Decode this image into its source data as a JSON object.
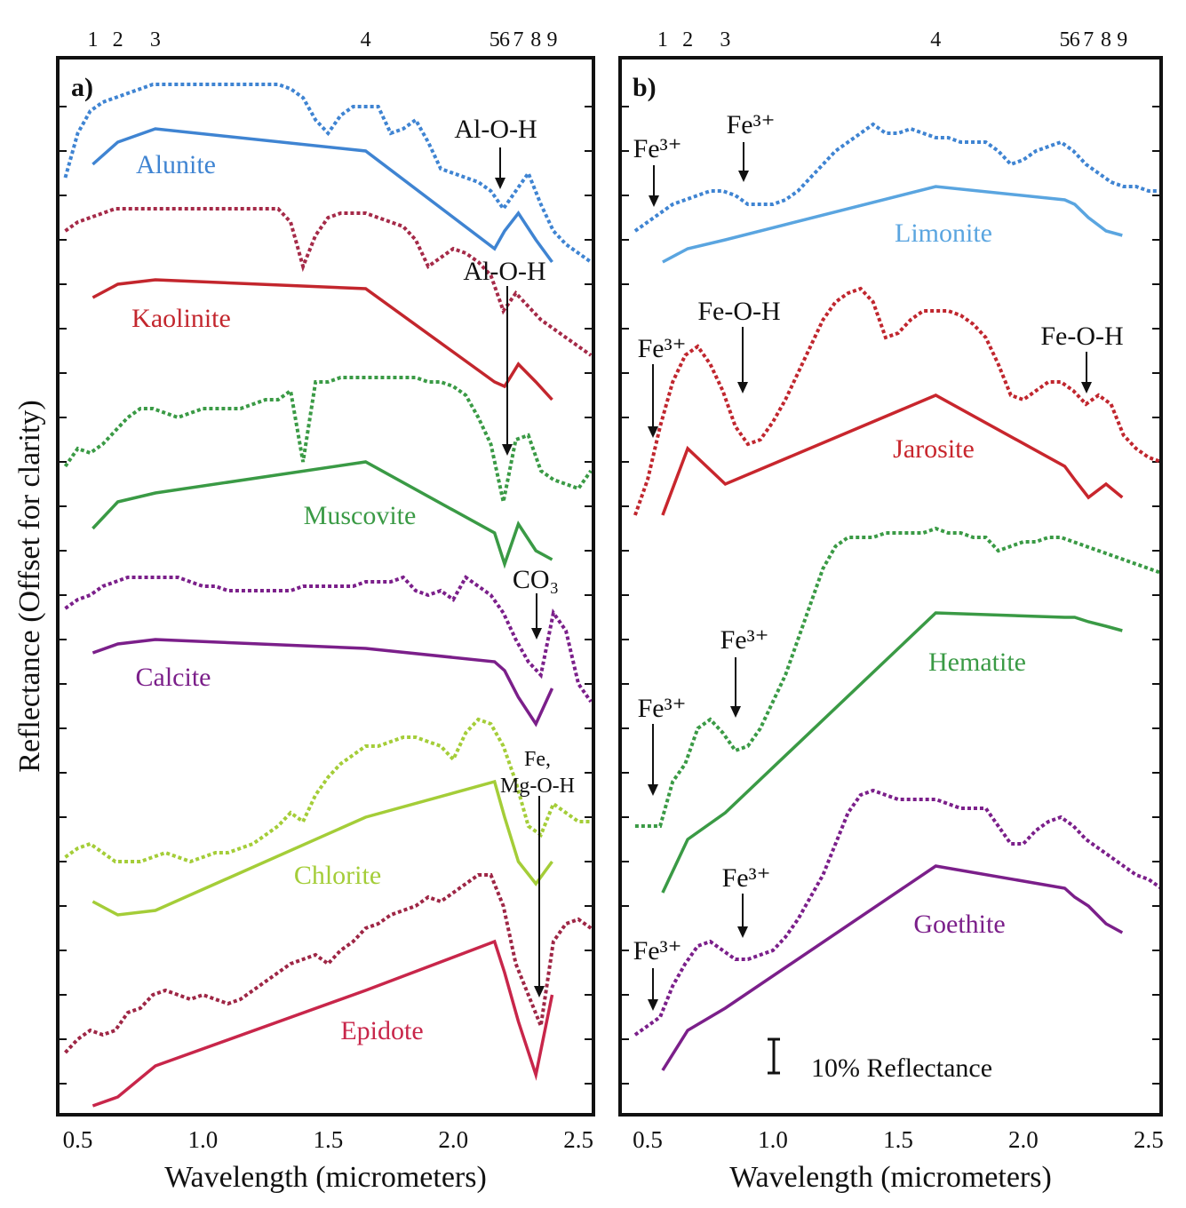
{
  "chart_data": [
    {
      "type": "line",
      "panel_label": "a)",
      "xlabel": "Wavelength (micrometers)",
      "ylabel": "Reflectance (Offset for clarity)",
      "xlim": [
        0.42,
        2.56
      ],
      "xticks": [
        0.5,
        {
          "value": 1,
          "label": "1.0"
        },
        1.5,
        {
          "value": 2,
          "label": "2.0"
        },
        2.5
      ],
      "x2ticks": [
        {
          "value": 0.56,
          "label": "1"
        },
        {
          "value": 0.66,
          "label": "2"
        },
        {
          "value": 0.81,
          "label": "3"
        },
        {
          "value": 1.65,
          "label": "4"
        },
        {
          "value": 2.165,
          "label": "5"
        },
        {
          "value": 2.205,
          "label": "6"
        },
        {
          "value": 2.26,
          "label": "7"
        },
        {
          "value": 2.33,
          "label": "8"
        },
        {
          "value": 2.395,
          "label": "9"
        }
      ],
      "ylim": [
        -7,
        231
      ],
      "yticks": [
        0,
        10,
        20,
        30,
        40,
        50,
        60,
        70,
        80,
        90,
        100,
        110,
        120,
        130,
        140,
        150,
        160,
        170,
        180,
        190,
        200,
        210,
        220
      ],
      "x": [
        0.45,
        0.5,
        0.55,
        0.6,
        0.65,
        0.7,
        0.75,
        0.8,
        0.85,
        0.9,
        0.95,
        1.0,
        1.05,
        1.1,
        1.15,
        1.2,
        1.25,
        1.3,
        1.35,
        1.4,
        1.45,
        1.5,
        1.55,
        1.6,
        1.65,
        1.7,
        1.75,
        1.8,
        1.85,
        1.9,
        1.95,
        2.0,
        2.05,
        2.1,
        2.15,
        2.2,
        2.25,
        2.3,
        2.35,
        2.4,
        2.45,
        2.5,
        2.55
      ],
      "series": [
        {
          "name": "Alunite",
          "color": "#3f84d2",
          "dotted_color": "#3f84d2",
          "values": [
            204,
            214,
            219,
            221,
            222,
            223,
            224,
            225,
            225,
            225,
            225,
            225,
            225,
            225,
            225,
            225,
            225,
            225,
            224,
            222,
            217,
            214,
            218,
            220,
            220,
            220,
            214,
            215,
            217,
            212,
            206,
            205,
            204,
            203,
            201,
            197,
            201,
            205,
            198,
            192,
            189,
            187,
            185
          ],
          "band_values": [
            207,
            212,
            215,
            210,
            188,
            192,
            196,
            190,
            185
          ]
        },
        {
          "name": "Kaolinite",
          "color": "#c3262d",
          "dotted_color": "#a52a48",
          "values": [
            192,
            194,
            195,
            196,
            197,
            197,
            197,
            197,
            197,
            197,
            197,
            197,
            197,
            197,
            197,
            197,
            197,
            197,
            194,
            184,
            191,
            195,
            196,
            196,
            196,
            195,
            194,
            193,
            190,
            184,
            186,
            188,
            187,
            185,
            182,
            174,
            178,
            175,
            172,
            170,
            168,
            166,
            164
          ],
          "band_values": [
            177,
            180,
            181,
            179,
            158,
            157,
            162,
            158,
            154
          ]
        },
        {
          "name": "Muscovite",
          "color": "#3a9a45",
          "dotted_color": "#3a9a45",
          "values": [
            139,
            143,
            142,
            144,
            147,
            150,
            152,
            152,
            151,
            150,
            151,
            152,
            152,
            152,
            152,
            153,
            154,
            154,
            156,
            140,
            158,
            158,
            159,
            159,
            159,
            159,
            159,
            159,
            159,
            158,
            158,
            157,
            155,
            150,
            144,
            131,
            145,
            146,
            138,
            136,
            135,
            134,
            138
          ],
          "band_values": [
            125,
            131,
            133,
            140,
            124,
            117,
            126,
            120,
            118
          ]
        },
        {
          "name": "Calcite",
          "color": "#7b1f8a",
          "dotted_color": "#7b1f8a",
          "values": [
            107,
            109,
            110,
            112,
            113,
            114,
            114,
            114,
            114,
            114,
            113,
            112,
            112,
            111,
            111,
            111,
            111,
            111,
            111,
            112,
            112,
            112,
            112,
            112,
            113,
            113,
            113,
            114,
            111,
            110,
            111,
            109,
            114,
            112,
            110,
            106,
            100,
            95,
            92,
            106,
            102,
            90,
            86
          ],
          "band_values": [
            97,
            99,
            100,
            98,
            95,
            93,
            87,
            81,
            89
          ]
        },
        {
          "name": "Chlorite",
          "color": "#a4cd38",
          "dotted_color": "#a4cd38",
          "values": [
            51,
            53,
            54,
            52,
            50,
            50,
            50,
            51,
            52,
            51,
            50,
            51,
            52,
            52,
            53,
            54,
            56,
            58,
            61,
            59,
            65,
            69,
            72,
            74,
            76,
            76,
            77,
            78,
            78,
            77,
            76,
            73,
            79,
            82,
            81,
            76,
            68,
            58,
            56,
            63,
            61,
            59,
            59
          ],
          "band_values": [
            41,
            38,
            39,
            60,
            68,
            60,
            50,
            45,
            50
          ]
        },
        {
          "name": "Epidote",
          "color": "#c8264a",
          "dotted_color": "#9e2645",
          "values": [
            7,
            10,
            12,
            11,
            12,
            16,
            17,
            20,
            21,
            20,
            19,
            20,
            19,
            18,
            19,
            21,
            23,
            25,
            27,
            28,
            29,
            27,
            30,
            32,
            35,
            36,
            38,
            39,
            40,
            42,
            41,
            43,
            45,
            47,
            47,
            40,
            27,
            20,
            13,
            32,
            36,
            37,
            35
          ],
          "band_values": [
            -5,
            -3,
            4,
            21,
            32,
            25,
            14,
            2,
            20
          ]
        }
      ],
      "annotations": [
        "Al-O-H",
        "Al-O-H",
        "CO₃",
        [
          "Fe,",
          "Mg-O-H"
        ]
      ]
    },
    {
      "type": "line",
      "panel_label": "b)",
      "xlabel": "Wavelength (micrometers)",
      "xlim": [
        0.39,
        2.55
      ],
      "xticks": [
        0.5,
        {
          "value": 1,
          "label": "1.0"
        },
        1.5,
        {
          "value": 2,
          "label": "2.0"
        },
        2.5
      ],
      "x2ticks": [
        {
          "value": 0.56,
          "label": "1"
        },
        {
          "value": 0.66,
          "label": "2"
        },
        {
          "value": 0.81,
          "label": "3"
        },
        {
          "value": 1.65,
          "label": "4"
        },
        {
          "value": 2.165,
          "label": "5"
        },
        {
          "value": 2.205,
          "label": "6"
        },
        {
          "value": 2.26,
          "label": "7"
        },
        {
          "value": 2.33,
          "label": "8"
        },
        {
          "value": 2.395,
          "label": "9"
        }
      ],
      "ylim": [
        -7,
        231
      ],
      "yticks": [
        0,
        10,
        20,
        30,
        40,
        50,
        60,
        70,
        80,
        90,
        100,
        110,
        120,
        130,
        140,
        150,
        160,
        170,
        180,
        190,
        200,
        210,
        220
      ],
      "x": [
        0.45,
        0.5,
        0.55,
        0.6,
        0.65,
        0.7,
        0.75,
        0.8,
        0.85,
        0.9,
        0.95,
        1.0,
        1.05,
        1.1,
        1.15,
        1.2,
        1.25,
        1.3,
        1.35,
        1.4,
        1.45,
        1.5,
        1.55,
        1.6,
        1.65,
        1.7,
        1.75,
        1.8,
        1.85,
        1.9,
        1.95,
        2.0,
        2.05,
        2.1,
        2.15,
        2.2,
        2.25,
        2.3,
        2.35,
        2.4,
        2.45,
        2.5,
        2.55
      ],
      "series": [
        {
          "name": "Limonite",
          "color": "#5aa5e0",
          "dotted_color": "#3f84d2",
          "values": [
            192,
            194,
            196,
            198,
            199,
            200,
            201,
            201,
            200,
            198,
            198,
            198,
            199,
            201,
            204,
            207,
            210,
            212,
            214,
            216,
            214,
            214,
            215,
            214,
            213,
            213,
            212,
            212,
            212,
            210,
            207,
            208,
            210,
            211,
            212,
            210,
            207,
            205,
            203,
            202,
            202,
            201,
            201
          ],
          "band_values": [
            185,
            188,
            190,
            202,
            199,
            198,
            195,
            192,
            191
          ]
        },
        {
          "name": "Jarosite",
          "color": "#c8262d",
          "dotted_color": "#c0262e",
          "values": [
            128,
            136,
            148,
            158,
            164,
            166,
            162,
            156,
            148,
            144,
            145,
            149,
            154,
            160,
            166,
            172,
            176,
            178,
            179,
            176,
            168,
            169,
            172,
            174,
            174,
            174,
            173,
            171,
            168,
            162,
            155,
            154,
            156,
            158,
            158,
            156,
            153,
            155,
            153,
            146,
            143,
            141,
            140
          ],
          "band_values": [
            128,
            143,
            135,
            155,
            139,
            136,
            132,
            135,
            132
          ]
        },
        {
          "name": "Hematite",
          "color": "#3a9a45",
          "dotted_color": "#3a9a45",
          "values": [
            58,
            58,
            58,
            68,
            72,
            80,
            82,
            79,
            75,
            76,
            80,
            86,
            92,
            100,
            108,
            116,
            121,
            123,
            123,
            123,
            124,
            124,
            124,
            124,
            125,
            124,
            124,
            123,
            123,
            120,
            121,
            122,
            122,
            123,
            123,
            122,
            121,
            120,
            119,
            118,
            117,
            116,
            115
          ],
          "band_values": [
            43,
            55,
            61,
            106,
            105,
            105,
            104,
            103,
            102
          ]
        },
        {
          "name": "Goethite",
          "color": "#7b1f8a",
          "dotted_color": "#7b1f8a",
          "values": [
            11,
            13,
            15,
            22,
            27,
            31,
            32,
            30,
            28,
            28,
            29,
            30,
            33,
            37,
            42,
            47,
            54,
            61,
            65,
            66,
            65,
            64,
            64,
            64,
            64,
            63,
            62,
            62,
            62,
            58,
            54,
            54,
            57,
            59,
            60,
            58,
            55,
            53,
            51,
            49,
            47,
            46,
            44
          ],
          "band_values": [
            3,
            12,
            17,
            49,
            44,
            42,
            40,
            36,
            34
          ]
        }
      ],
      "annotations": [
        "Fe³⁺",
        "Fe³⁺",
        "Fe³⁺",
        "Fe-O-H",
        "Fe-O-H",
        "Fe³⁺",
        "Fe³⁺",
        "Fe³⁺",
        "Fe³⁺"
      ],
      "scale_bar_label": "10% Reflectance"
    }
  ]
}
